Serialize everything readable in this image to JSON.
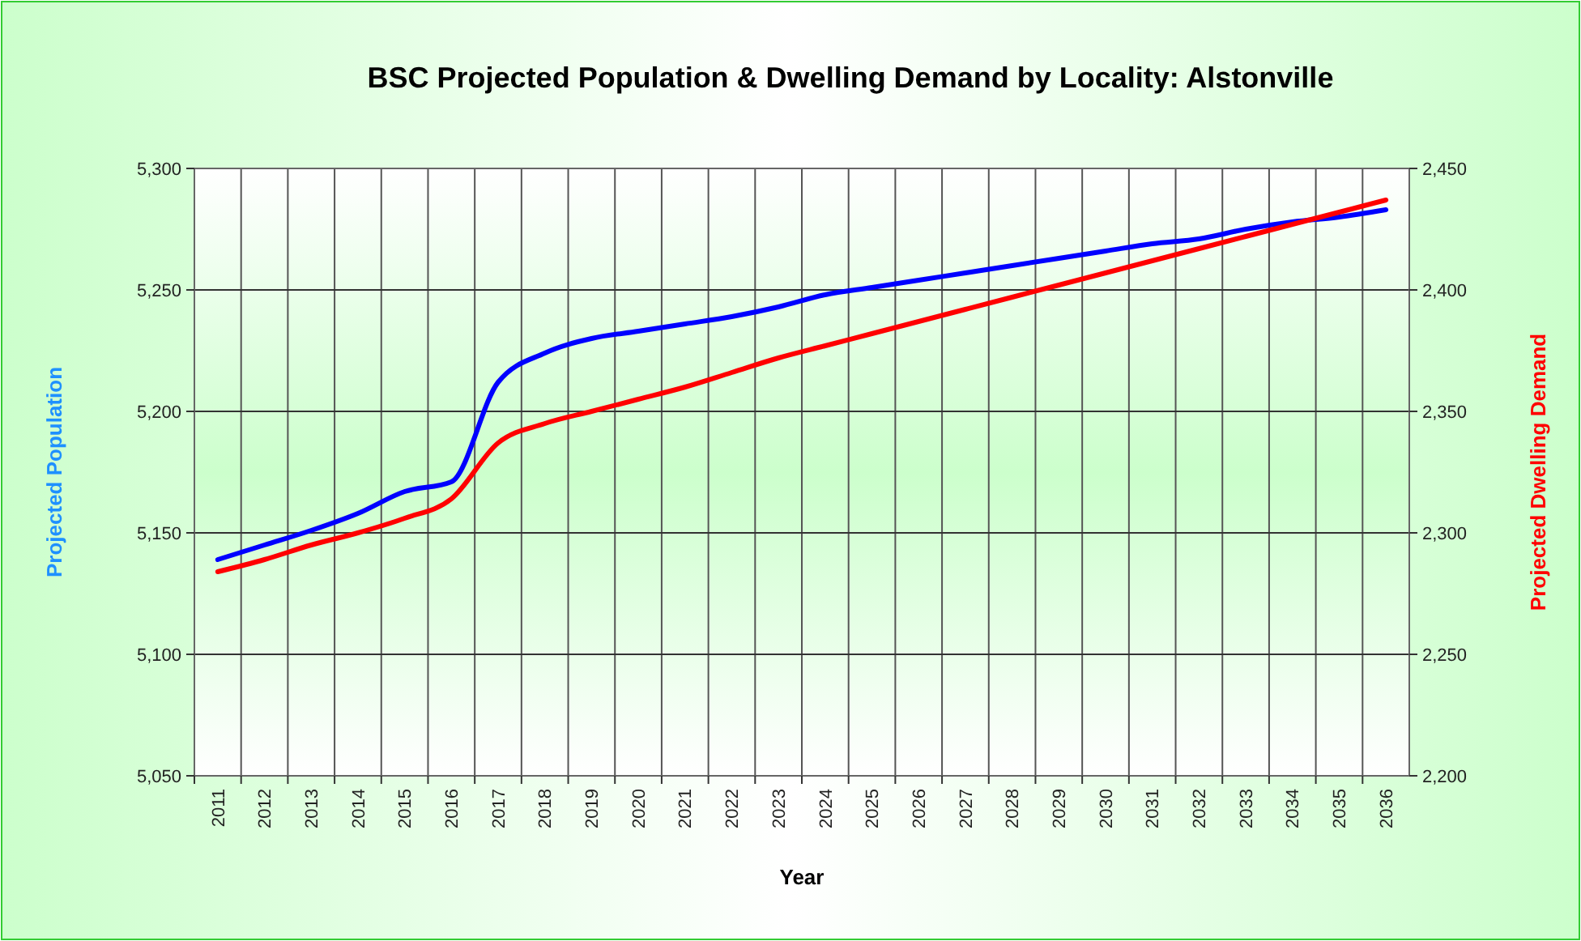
{
  "chart_data": {
    "type": "line",
    "title": "BSC Projected Population & Dwelling Demand by Locality: Alstonville",
    "xlabel": "Year",
    "ylabel": "Projected Population",
    "y2label": "Projected Dwelling Demand",
    "categories": [
      "2011",
      "2012",
      "2013",
      "2014",
      "2015",
      "2016",
      "2017",
      "2018",
      "2019",
      "2020",
      "2021",
      "2022",
      "2023",
      "2024",
      "2025",
      "2026",
      "2027",
      "2028",
      "2029",
      "2030",
      "2031",
      "2032",
      "2033",
      "2034",
      "2035",
      "2036"
    ],
    "series": [
      {
        "color": "#0000ff",
        "values": [
          5139,
          5145,
          5151,
          5158,
          5167,
          5171,
          5212,
          5224,
          5230,
          5233,
          5236,
          5239,
          5243,
          5248,
          5251,
          5254,
          5257,
          5260,
          5263,
          5266,
          5269,
          5271,
          5275,
          5278,
          5280,
          5283
        ]
      },
      {
        "color": "#ff0000",
        "axis": "y2",
        "values": [
          2284,
          2289,
          2295,
          2300,
          2306,
          2314,
          2337,
          2345,
          2350,
          2355,
          2360,
          2366,
          2372,
          2377,
          2382,
          2387,
          2392,
          2397,
          2402,
          2407,
          2412,
          2417,
          2422,
          2427,
          2432,
          2437
        ]
      }
    ],
    "ylim": [
      5050,
      5300
    ],
    "yticks": [
      {
        "value": 5050,
        "label": "5,050"
      },
      {
        "value": 5100,
        "label": "5,100"
      },
      {
        "value": 5150,
        "label": "5,150"
      },
      {
        "value": 5200,
        "label": "5,200"
      },
      {
        "value": 5250,
        "label": "5,250"
      },
      {
        "value": 5300,
        "label": "5,300"
      }
    ],
    "y2lim": [
      2200,
      2450
    ],
    "y2ticks": [
      {
        "value": 2200,
        "label": "2,200"
      },
      {
        "value": 2250,
        "label": "2,250"
      },
      {
        "value": 2300,
        "label": "2,300"
      },
      {
        "value": 2350,
        "label": "2,350"
      },
      {
        "value": 2400,
        "label": "2,400"
      },
      {
        "value": 2450,
        "label": "2,450"
      }
    ],
    "grid": true,
    "marker": "none",
    "line_style": "solid"
  }
}
